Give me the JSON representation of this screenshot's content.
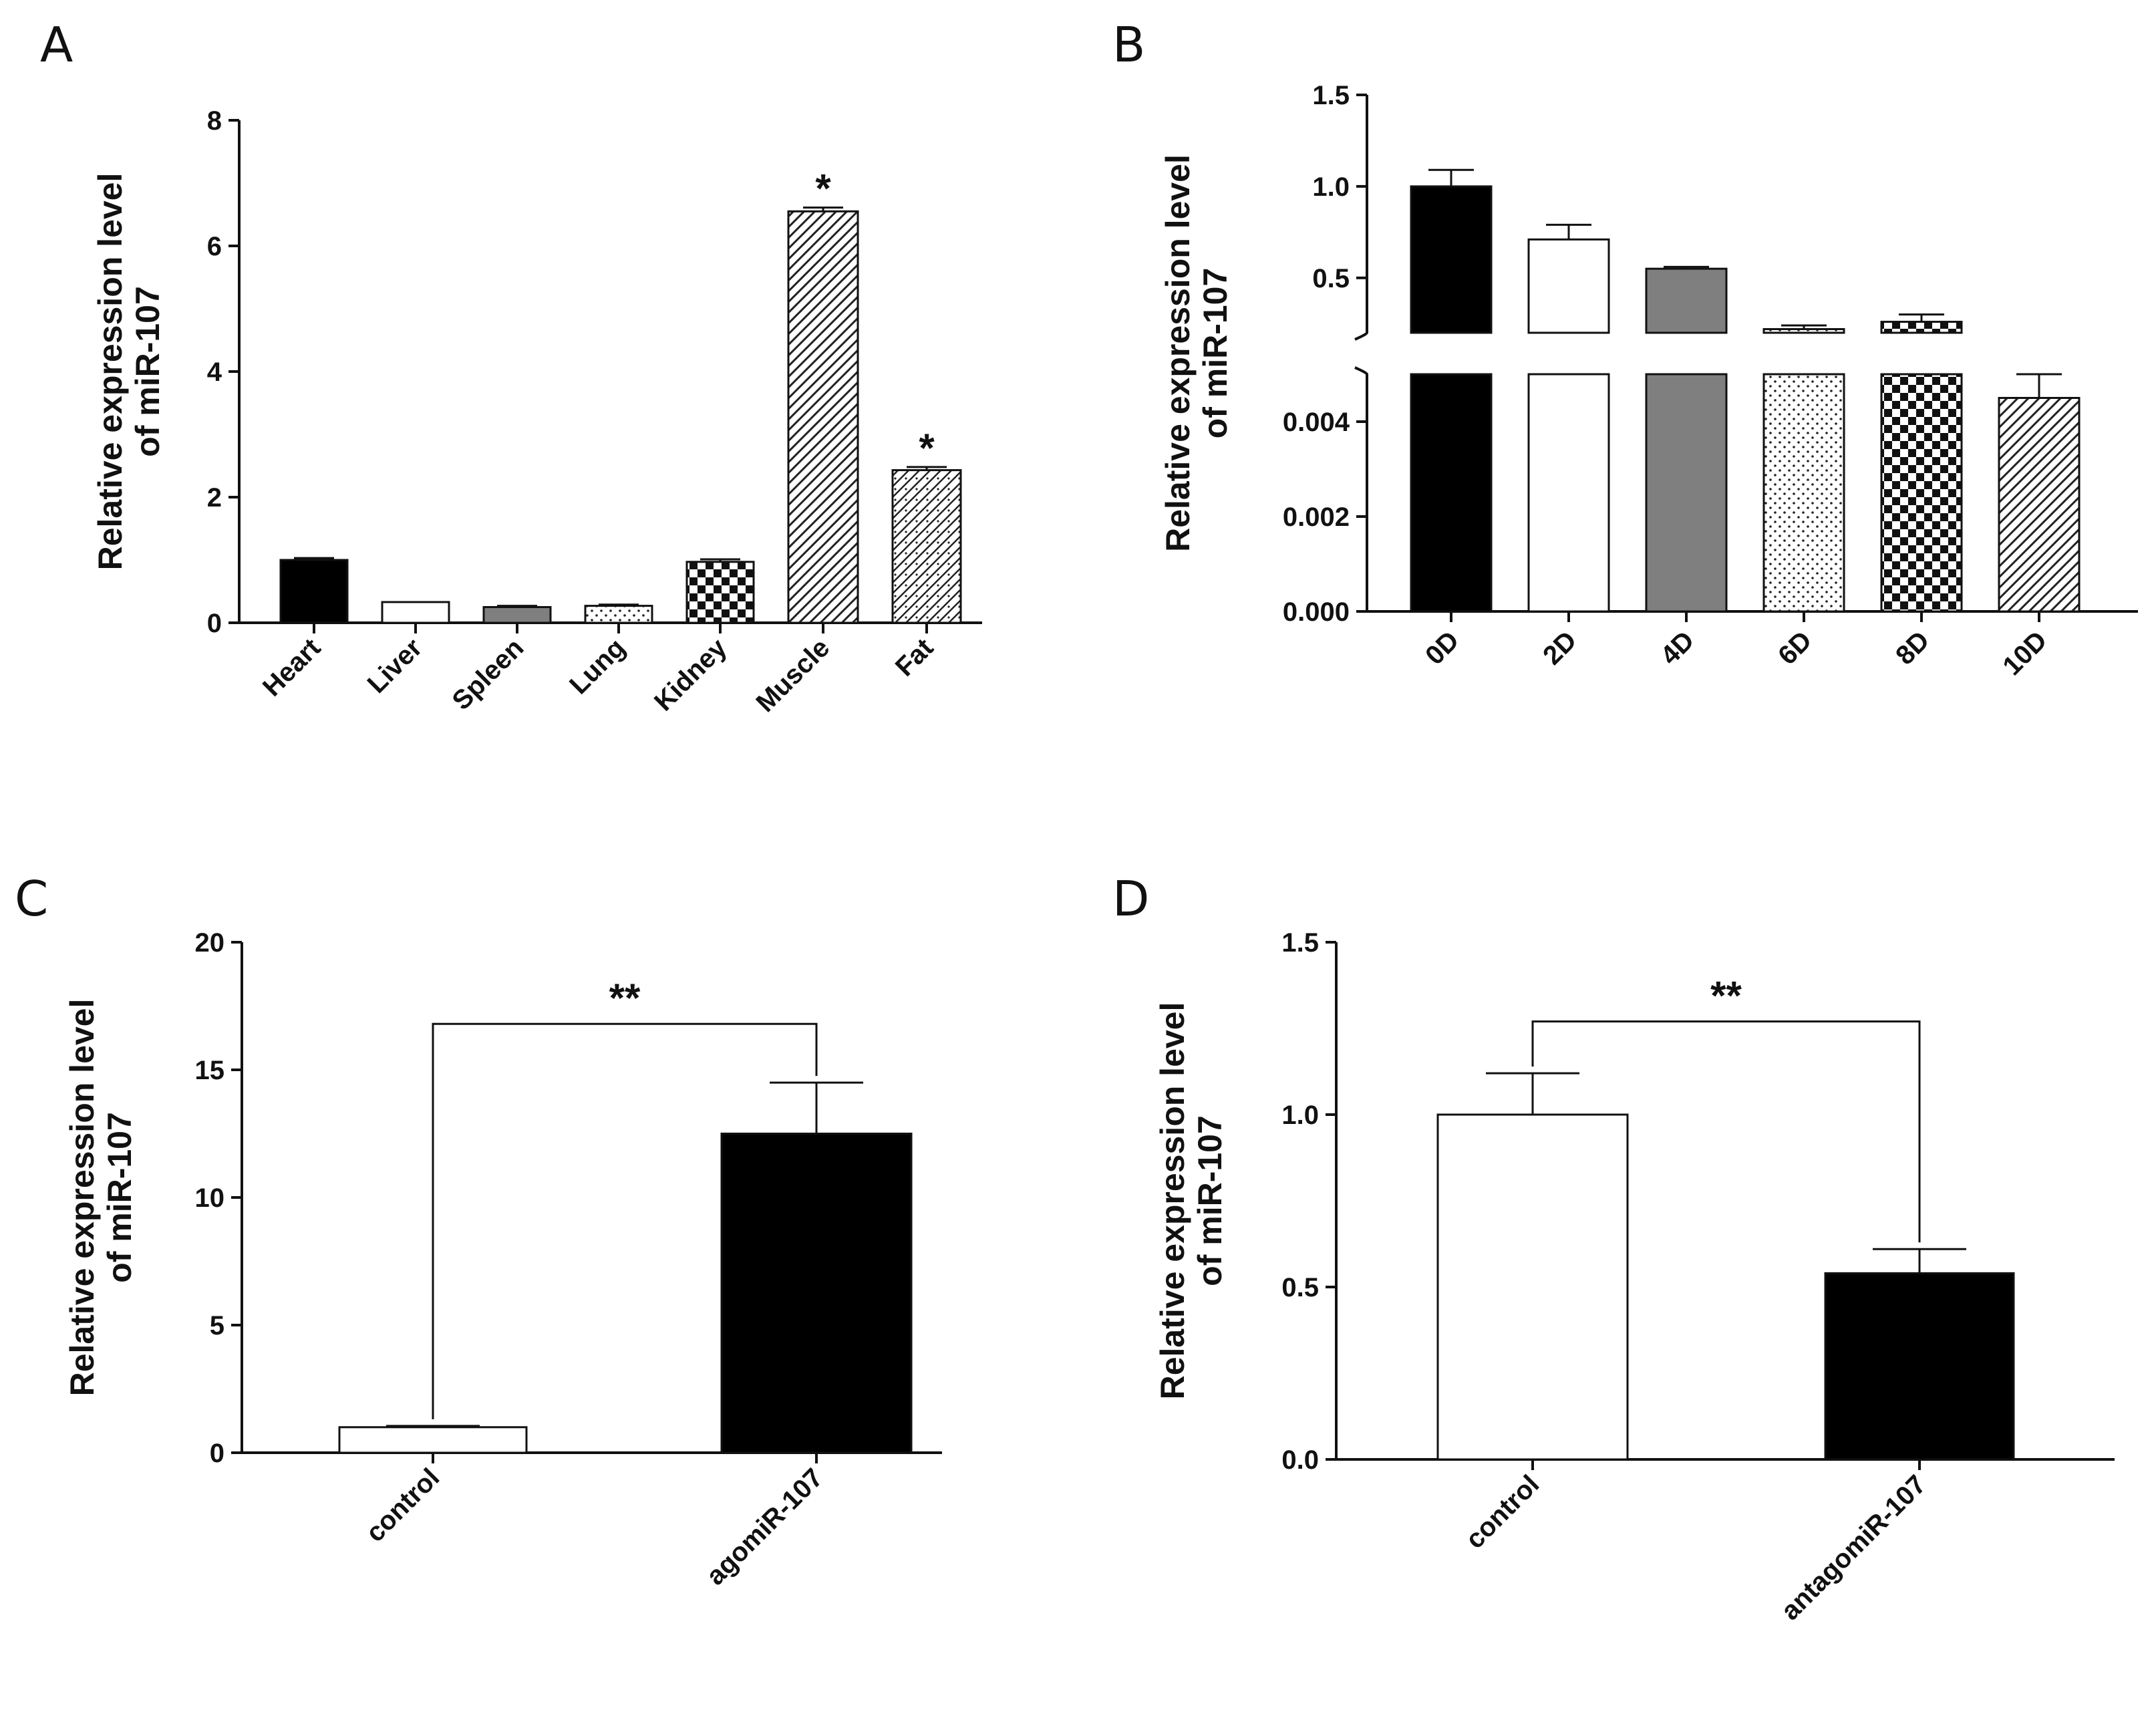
{
  "colors": {
    "black": "#000000",
    "white": "#ffffff",
    "gray": "#7f7f7f",
    "axis": "#111111"
  },
  "chart_data": [
    {
      "panel": "A",
      "type": "bar",
      "ylabel_line1": "Relative expression level",
      "ylabel_line2": "of miR-107",
      "ylim": [
        0,
        8
      ],
      "yticks": [
        "0",
        "2",
        "4",
        "6",
        "8"
      ],
      "categories": [
        "Heart",
        "Liver",
        "Spleen",
        "Lung",
        "Kidney",
        "Muscle",
        "Fat"
      ],
      "values": [
        1.0,
        0.33,
        0.25,
        0.27,
        0.97,
        6.55,
        2.43
      ],
      "errors": [
        0.03,
        0.0,
        0.02,
        0.02,
        0.04,
        0.06,
        0.05
      ],
      "fills": [
        "black",
        "white",
        "gray",
        "dots",
        "checker",
        "diag",
        "diag-dots"
      ],
      "annotations": [
        "",
        "",
        "",
        "",
        "",
        "*",
        "*"
      ]
    },
    {
      "panel": "B",
      "type": "bar",
      "broken_axis": true,
      "ylabel_line1": "Relative expression level",
      "ylabel_line2": "of miR-107",
      "upper_ylim": [
        0.2,
        1.5
      ],
      "upper_yticks": [
        "0.5",
        "1.0",
        "1.5"
      ],
      "lower_ylim": [
        0,
        0.005
      ],
      "lower_yticks": [
        "0.000",
        "0.002",
        "0.004"
      ],
      "categories": [
        "0D",
        "2D",
        "4D",
        "6D",
        "8D",
        "10D"
      ],
      "values": [
        1.0,
        0.71,
        0.55,
        0.22,
        0.26,
        0.0045
      ],
      "errors": [
        0.09,
        0.08,
        0.01,
        0.02,
        0.04,
        0.0005
      ],
      "fills": [
        "black",
        "white",
        "gray",
        "dots",
        "checker",
        "diag"
      ]
    },
    {
      "panel": "C",
      "type": "bar",
      "ylabel_line1": "Relative expression level",
      "ylabel_line2": "of miR-107",
      "ylim": [
        0,
        20
      ],
      "yticks": [
        "0",
        "5",
        "10",
        "15",
        "20"
      ],
      "categories": [
        "control",
        "agomiR-107"
      ],
      "values": [
        1.0,
        12.5
      ],
      "errors": [
        0.05,
        2.0
      ],
      "fills": [
        "white",
        "black"
      ],
      "significance": "**",
      "bracket_y": 16.8
    },
    {
      "panel": "D",
      "type": "bar",
      "ylabel_line1": "Relative expression level",
      "ylabel_line2": "of miR-107",
      "ylim": [
        0,
        1.5
      ],
      "yticks": [
        "0.0",
        "0.5",
        "1.0",
        "1.5"
      ],
      "categories": [
        "control",
        "antagomiR-107"
      ],
      "values": [
        1.0,
        0.54
      ],
      "errors": [
        0.12,
        0.07
      ],
      "fills": [
        "white",
        "black"
      ],
      "significance": "**",
      "bracket_y": 1.27
    }
  ]
}
